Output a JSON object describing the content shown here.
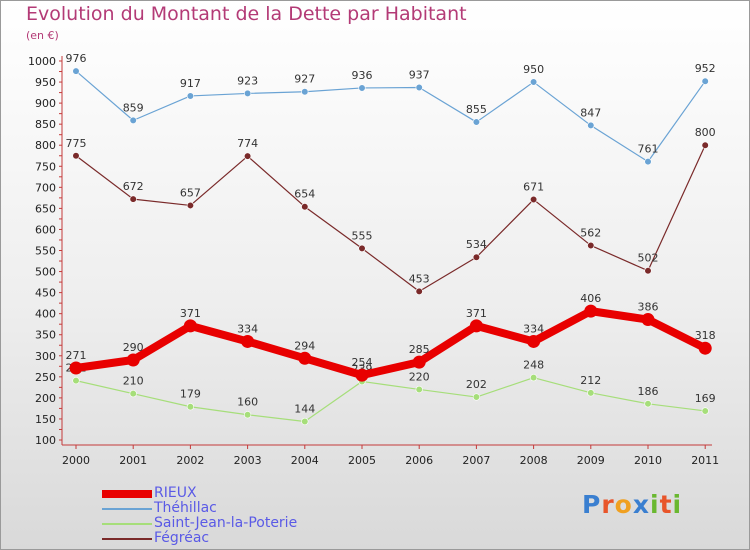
{
  "title": "Evolution du Montant de la Dette par Habitant",
  "subtitle": "(en €)",
  "logo": "Proxiti",
  "chart_data": {
    "type": "line",
    "title": "Evolution du Montant de la Dette par Habitant",
    "ylabel": "(en €)",
    "x": [
      "2000",
      "2001",
      "2002",
      "2003",
      "2004",
      "2005",
      "2006",
      "2007",
      "2008",
      "2009",
      "2010",
      "2011"
    ],
    "ylim": [
      100,
      1000
    ],
    "yticks": [
      100,
      150,
      200,
      250,
      300,
      350,
      400,
      450,
      500,
      550,
      600,
      650,
      700,
      750,
      800,
      850,
      900,
      950,
      1000
    ],
    "grid": false,
    "legend": "bottom-left",
    "series": [
      {
        "name": "RIEUX",
        "color": "#e80000",
        "values": [
          271,
          290,
          371,
          334,
          294,
          254,
          285,
          371,
          334,
          406,
          386,
          318
        ]
      },
      {
        "name": "Théhillac",
        "color": "#6aa3d4",
        "values": [
          976,
          859,
          917,
          923,
          927,
          936,
          937,
          855,
          950,
          847,
          761,
          952
        ]
      },
      {
        "name": "Saint-Jean-la-Poterie",
        "color": "#a6de7a",
        "values": [
          241,
          210,
          179,
          160,
          144,
          239,
          220,
          202,
          248,
          212,
          186,
          169
        ]
      },
      {
        "name": "Fégréac",
        "color": "#7a2a2a",
        "values": [
          775,
          672,
          657,
          774,
          654,
          555,
          453,
          534,
          671,
          562,
          502,
          800
        ]
      }
    ]
  }
}
